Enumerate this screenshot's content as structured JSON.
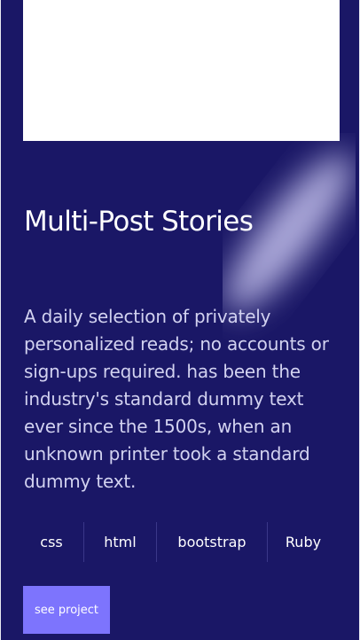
{
  "project": {
    "title": "Multi-Post Stories",
    "description": "A daily selection of privately personalized reads; no accounts or sign-ups required. has been the industry's standard dummy text ever since the 1500s, when an unknown printer took a standard dummy text.",
    "tags": [
      "css",
      "html",
      "bootstrap",
      "Ruby"
    ],
    "cta_label": "see project"
  },
  "colors": {
    "background": "#1a1766",
    "accent": "#7d74fd",
    "preview_placeholder": "#ffffff",
    "description_text": "#d2d2f0"
  }
}
